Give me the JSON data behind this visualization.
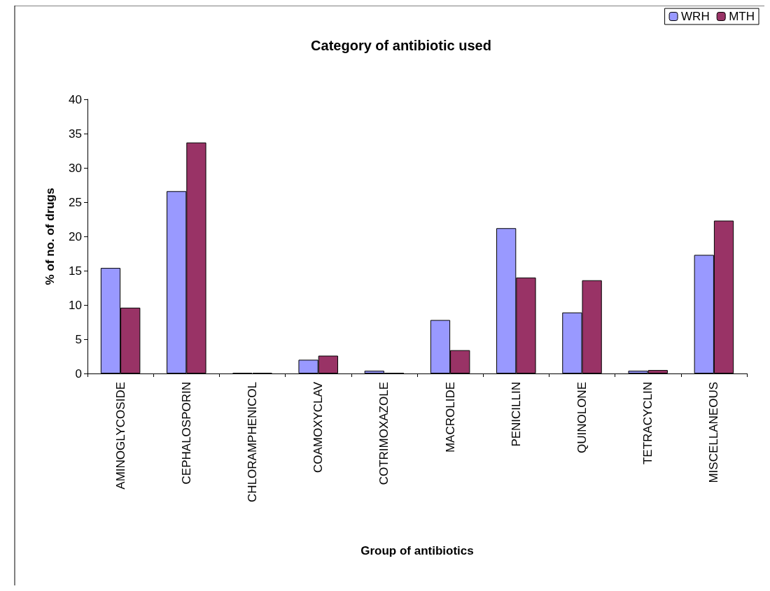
{
  "chart_data": {
    "type": "bar",
    "title": "Category of antibiotic used",
    "xlabel": "Group of antibiotics",
    "ylabel": "% of no. of drugs",
    "categories": [
      "AMINOGLYCOSIDE",
      "CEPHALOSPORIN",
      "CHLORAMPHENICOL",
      "COAMOXYCLAV",
      "COTRIMOXAZOLE",
      "MACROLIDE",
      "PENICILLIN",
      "QUINOLONE",
      "TETRACYCLIN",
      "MISCELLANEOUS"
    ],
    "series": [
      {
        "name": "WRH",
        "color": "#9999ff",
        "values": [
          15.4,
          26.6,
          0.1,
          2.0,
          0.4,
          7.8,
          21.2,
          8.9,
          0.4,
          17.3
        ]
      },
      {
        "name": "MTH",
        "color": "#993366",
        "values": [
          9.6,
          33.7,
          0.1,
          2.6,
          0.1,
          3.4,
          14.0,
          13.6,
          0.5,
          22.3
        ]
      }
    ],
    "ylim": [
      0,
      40
    ],
    "yticks": [
      0,
      5,
      10,
      15,
      20,
      25,
      30,
      35,
      40
    ],
    "grid": false,
    "legend": "top right"
  }
}
